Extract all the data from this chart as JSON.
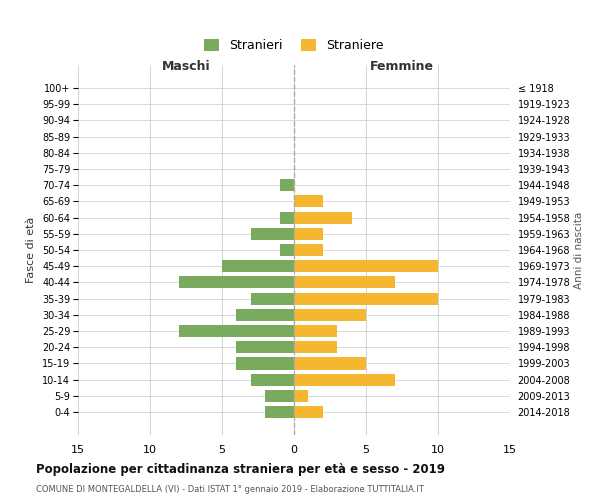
{
  "age_groups": [
    "100+",
    "95-99",
    "90-94",
    "85-89",
    "80-84",
    "75-79",
    "70-74",
    "65-69",
    "60-64",
    "55-59",
    "50-54",
    "45-49",
    "40-44",
    "35-39",
    "30-34",
    "25-29",
    "20-24",
    "15-19",
    "10-14",
    "5-9",
    "0-4"
  ],
  "birth_years": [
    "≤ 1918",
    "1919-1923",
    "1924-1928",
    "1929-1933",
    "1934-1938",
    "1939-1943",
    "1944-1948",
    "1949-1953",
    "1954-1958",
    "1959-1963",
    "1964-1968",
    "1969-1973",
    "1974-1978",
    "1979-1983",
    "1984-1988",
    "1989-1993",
    "1994-1998",
    "1999-2003",
    "2004-2008",
    "2009-2013",
    "2014-2018"
  ],
  "maschi": [
    0,
    0,
    0,
    0,
    0,
    0,
    1,
    0,
    1,
    3,
    1,
    5,
    8,
    3,
    4,
    8,
    4,
    4,
    3,
    2,
    2
  ],
  "femmine": [
    0,
    0,
    0,
    0,
    0,
    0,
    0,
    2,
    4,
    2,
    2,
    10,
    7,
    10,
    5,
    3,
    3,
    5,
    7,
    1,
    2
  ],
  "color_maschi": "#7aaa5e",
  "color_femmine": "#f5b731",
  "title": "Popolazione per cittadinanza straniera per età e sesso - 2019",
  "subtitle": "COMUNE DI MONTEGALDELLA (VI) - Dati ISTAT 1° gennaio 2019 - Elaborazione TUTTITALIA.IT",
  "legend_maschi": "Stranieri",
  "legend_femmine": "Straniere",
  "xlabel_left": "Maschi",
  "xlabel_right": "Femmine",
  "ylabel_left": "Fasce di età",
  "ylabel_right": "Anni di nascita",
  "xlim": 15,
  "background_color": "#ffffff",
  "grid_color": "#cccccc"
}
